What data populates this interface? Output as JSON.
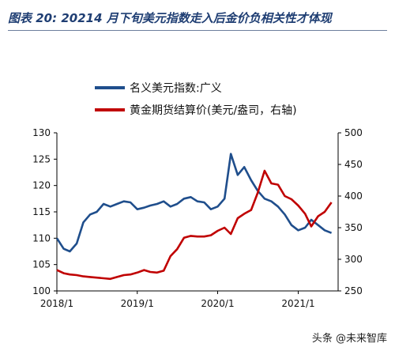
{
  "header": {
    "title": "图表 20:  20214 月下旬美元指数走入后金价负相关性才体现"
  },
  "watermark": {
    "text": "头条 @未来智库"
  },
  "chart_data": {
    "type": "line",
    "title": "",
    "xlabel": "",
    "ylabel": "",
    "x_ticks": [
      "2018/1",
      "2019/1",
      "2020/1",
      "2021/1"
    ],
    "ylim_left": [
      100,
      130
    ],
    "yticks_left": [
      100,
      105,
      110,
      115,
      120,
      125,
      130
    ],
    "ylim_right": [
      250,
      500
    ],
    "yticks_right": [
      250,
      300,
      350,
      400,
      450,
      500
    ],
    "grid": false,
    "legend_position": "top-left",
    "series": [
      {
        "name": "名义美元指数:广义",
        "axis": "left",
        "color": "#1f4e8c",
        "points": [
          [
            "2018-01",
            110.0
          ],
          [
            "2018-02",
            108.0
          ],
          [
            "2018-03",
            107.5
          ],
          [
            "2018-04",
            109.0
          ],
          [
            "2018-05",
            113.0
          ],
          [
            "2018-06",
            114.5
          ],
          [
            "2018-07",
            115.0
          ],
          [
            "2018-08",
            116.5
          ],
          [
            "2018-09",
            116.0
          ],
          [
            "2018-10",
            116.5
          ],
          [
            "2018-11",
            117.0
          ],
          [
            "2018-12",
            116.8
          ],
          [
            "2019-01",
            115.5
          ],
          [
            "2019-02",
            115.8
          ],
          [
            "2019-03",
            116.2
          ],
          [
            "2019-04",
            116.5
          ],
          [
            "2019-05",
            117.0
          ],
          [
            "2019-06",
            116.0
          ],
          [
            "2019-07",
            116.5
          ],
          [
            "2019-08",
            117.5
          ],
          [
            "2019-09",
            117.8
          ],
          [
            "2019-10",
            117.0
          ],
          [
            "2019-11",
            116.8
          ],
          [
            "2019-12",
            115.5
          ],
          [
            "2020-01",
            116.0
          ],
          [
            "2020-02",
            117.5
          ],
          [
            "2020-03",
            126.0
          ],
          [
            "2020-04",
            122.0
          ],
          [
            "2020-05",
            123.5
          ],
          [
            "2020-06",
            121.0
          ],
          [
            "2020-07",
            119.0
          ],
          [
            "2020-08",
            117.5
          ],
          [
            "2020-09",
            117.0
          ],
          [
            "2020-10",
            116.0
          ],
          [
            "2020-11",
            114.5
          ],
          [
            "2020-12",
            112.5
          ],
          [
            "2021-01",
            111.5
          ],
          [
            "2021-02",
            112.0
          ],
          [
            "2021-03",
            113.5
          ],
          [
            "2021-04",
            112.5
          ],
          [
            "2021-05",
            111.5
          ],
          [
            "2021-06",
            111.0
          ]
        ]
      },
      {
        "name": "黄金期货结算价(美元/盎司，右轴)",
        "axis": "right",
        "color": "#c00000",
        "points": [
          [
            "2018-01",
            283.0
          ],
          [
            "2018-02",
            278.0
          ],
          [
            "2018-03",
            276.0
          ],
          [
            "2018-04",
            275.0
          ],
          [
            "2018-05",
            273.0
          ],
          [
            "2018-06",
            272.0
          ],
          [
            "2018-07",
            271.0
          ],
          [
            "2018-08",
            270.0
          ],
          [
            "2018-09",
            269.0
          ],
          [
            "2018-10",
            272.0
          ],
          [
            "2018-11",
            275.0
          ],
          [
            "2018-12",
            276.0
          ],
          [
            "2019-01",
            279.0
          ],
          [
            "2019-02",
            283.0
          ],
          [
            "2019-03",
            280.0
          ],
          [
            "2019-04",
            279.0
          ],
          [
            "2019-05",
            282.0
          ],
          [
            "2019-06",
            305.0
          ],
          [
            "2019-07",
            316.0
          ],
          [
            "2019-08",
            334.0
          ],
          [
            "2019-09",
            337.0
          ],
          [
            "2019-10",
            336.0
          ],
          [
            "2019-11",
            336.0
          ],
          [
            "2019-12",
            338.0
          ],
          [
            "2020-01",
            345.0
          ],
          [
            "2020-02",
            350.0
          ],
          [
            "2020-03",
            340.0
          ],
          [
            "2020-04",
            365.0
          ],
          [
            "2020-05",
            372.0
          ],
          [
            "2020-06",
            378.0
          ],
          [
            "2020-07",
            405.0
          ],
          [
            "2020-08",
            440.0
          ],
          [
            "2020-09",
            420.0
          ],
          [
            "2020-10",
            418.0
          ],
          [
            "2020-11",
            400.0
          ],
          [
            "2020-12",
            395.0
          ],
          [
            "2021-01",
            385.0
          ],
          [
            "2021-02",
            372.0
          ],
          [
            "2021-03",
            352.0
          ],
          [
            "2021-04",
            368.0
          ],
          [
            "2021-05",
            375.0
          ],
          [
            "2021-06",
            390.0
          ]
        ]
      }
    ]
  }
}
